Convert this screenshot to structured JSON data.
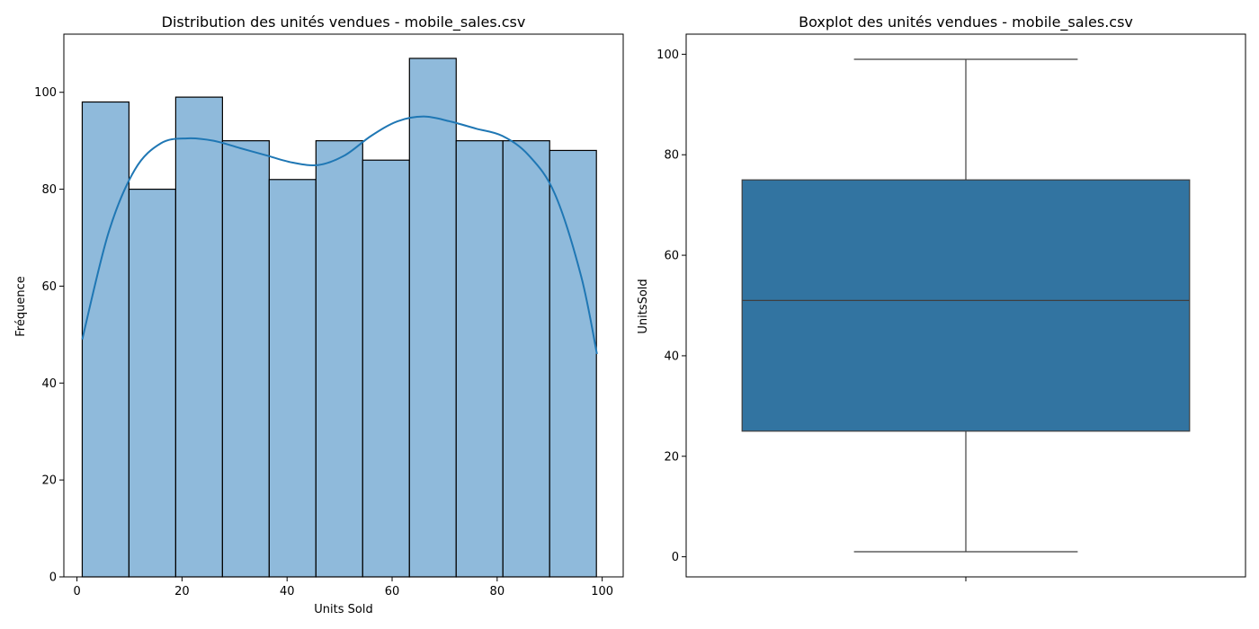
{
  "chart_data": [
    {
      "type": "bar",
      "subtype": "histogram_with_kde",
      "title": "Distribution des unités vendues - mobile_sales.csv",
      "xlabel": "Units Sold",
      "ylabel": "Fréquence",
      "xlim": [
        -2.5,
        104.0
      ],
      "ylim": [
        0,
        112
      ],
      "xticks": [
        0,
        20,
        40,
        60,
        80,
        100
      ],
      "yticks": [
        0,
        20,
        40,
        60,
        80,
        100
      ],
      "bin_edges": [
        1,
        9.9,
        18.8,
        27.7,
        36.6,
        45.5,
        54.4,
        63.3,
        72.2,
        81.1,
        90.0,
        98.9
      ],
      "values": [
        98,
        80,
        99,
        90,
        82,
        90,
        86,
        107,
        90,
        90,
        88
      ],
      "kde": {
        "x": [
          1,
          6,
          11,
          16,
          21,
          26,
          31,
          36,
          41,
          46,
          51,
          56,
          61,
          66,
          71,
          76,
          81,
          86,
          91,
          96,
          99
        ],
        "y": [
          49,
          71,
          84,
          89.5,
          90.5,
          90,
          88.5,
          87,
          85.5,
          85,
          87,
          91,
          94,
          95,
          94,
          92.5,
          91,
          87,
          79,
          62,
          46
        ]
      },
      "grid": false,
      "colors": {
        "bar": "#8fbadb",
        "kde": "#1f77b4"
      }
    },
    {
      "type": "boxplot",
      "title": "Boxplot des unités vendues - mobile_sales.csv",
      "xlabel": "",
      "ylabel": "UnitsSold",
      "ylim": [
        -4,
        104
      ],
      "yticks": [
        0,
        20,
        40,
        60,
        80,
        100
      ],
      "stats": {
        "min": 1,
        "q1": 25,
        "median": 51,
        "q3": 75,
        "max": 99
      },
      "grid": false,
      "colors": {
        "box": "#3274a1",
        "line": "#3f3f3f"
      }
    }
  ]
}
